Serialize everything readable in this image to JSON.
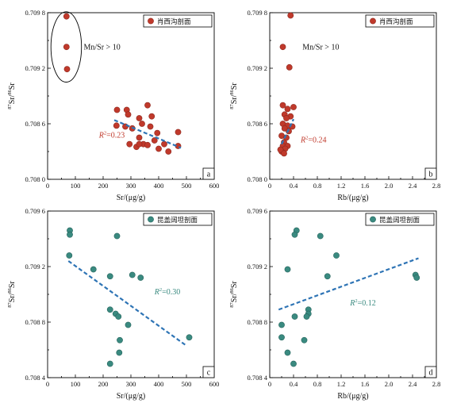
{
  "chart_data": [
    {
      "id": "a",
      "type": "scatter",
      "panel_label": "a",
      "xlabel": "Sr/(μg/g)",
      "ylabel_parts": {
        "sup1": "87",
        "t1": "Sr/",
        "sup2": "86",
        "t2": "Sr"
      },
      "xlim": [
        0,
        600
      ],
      "ylim": [
        0.708,
        0.7098
      ],
      "xticks": [
        "0",
        "100",
        "200",
        "300",
        "400",
        "500",
        "600"
      ],
      "yticks": [
        "0.708 0",
        "0.708 6",
        "0.709 2",
        "0.709 8"
      ],
      "legend": "肖西沟剖面",
      "color": "#c0392b",
      "edge": "#8e2a20",
      "trend_color": "#2e74b5",
      "trend": {
        "x": [
          240,
          480
        ],
        "y": [
          0.70864,
          0.70834
        ]
      },
      "r2_text": "=0.23",
      "r2_color": "#c0392b",
      "r2_pos": {
        "x": 185,
        "y": 0.70845
      },
      "annotation": "Mn/Sr > 10",
      "annotation_pos": {
        "x": 130,
        "y": 0.7094
      },
      "ellipse": {
        "cx": 67,
        "cy": 0.70943,
        "rx": 55,
        "ry": 0.00038
      },
      "points": [
        [
          68,
          0.70976
        ],
        [
          68,
          0.70943
        ],
        [
          70,
          0.70919
        ],
        [
          250,
          0.70875
        ],
        [
          285,
          0.70875
        ],
        [
          290,
          0.7087
        ],
        [
          330,
          0.70866
        ],
        [
          360,
          0.7088
        ],
        [
          375,
          0.70868
        ],
        [
          248,
          0.70858
        ],
        [
          280,
          0.70857
        ],
        [
          305,
          0.70855
        ],
        [
          340,
          0.7086
        ],
        [
          370,
          0.70857
        ],
        [
          395,
          0.7085
        ],
        [
          470,
          0.70851
        ],
        [
          295,
          0.70838
        ],
        [
          320,
          0.70835
        ],
        [
          330,
          0.70845
        ],
        [
          345,
          0.70838
        ],
        [
          360,
          0.70837
        ],
        [
          385,
          0.70842
        ],
        [
          400,
          0.70833
        ],
        [
          420,
          0.70838
        ],
        [
          435,
          0.7083
        ],
        [
          470,
          0.70836
        ],
        [
          330,
          0.70838
        ]
      ]
    },
    {
      "id": "b",
      "type": "scatter",
      "panel_label": "b",
      "xlabel": "Rb/(μg/g)",
      "ylabel_parts": {
        "sup1": "87",
        "t1": "Sr/",
        "sup2": "86",
        "t2": "Sr"
      },
      "xlim": [
        0,
        2.8
      ],
      "ylim": [
        0.708,
        0.7098
      ],
      "xticks": [
        "0",
        "0.4",
        "0.8",
        "1.2",
        "1.6",
        "2.0",
        "2.4",
        "2.8"
      ],
      "yticks": [
        "0.708 0",
        "0.708 6",
        "0.709 2",
        "0.709 8"
      ],
      "legend": "肖西沟剖面",
      "color": "#c0392b",
      "edge": "#8e2a20",
      "trend_color": "#2e74b5",
      "trend": {
        "x": [
          0.2,
          0.4
        ],
        "y": [
          0.70838,
          0.70865
        ]
      },
      "r2_text": "=0.24",
      "r2_color": "#c0392b",
      "r2_pos": {
        "x": 0.52,
        "y": 0.7084
      },
      "annotation": "Mn/Sr > 10",
      "annotation_pos": {
        "x": 0.55,
        "y": 0.7094
      },
      "ellipse": null,
      "points": [
        [
          0.35,
          0.70977
        ],
        [
          0.22,
          0.70943
        ],
        [
          0.33,
          0.70921
        ],
        [
          0.22,
          0.7088
        ],
        [
          0.3,
          0.70876
        ],
        [
          0.4,
          0.70878
        ],
        [
          0.25,
          0.7087
        ],
        [
          0.35,
          0.70868
        ],
        [
          0.28,
          0.70866
        ],
        [
          0.22,
          0.7086
        ],
        [
          0.3,
          0.70858
        ],
        [
          0.38,
          0.70857
        ],
        [
          0.25,
          0.70855
        ],
        [
          0.32,
          0.70852
        ],
        [
          0.2,
          0.70847
        ],
        [
          0.28,
          0.70845
        ],
        [
          0.24,
          0.7084
        ],
        [
          0.22,
          0.70836
        ],
        [
          0.3,
          0.70836
        ],
        [
          0.26,
          0.70833
        ],
        [
          0.2,
          0.7083
        ],
        [
          0.18,
          0.70832
        ],
        [
          0.24,
          0.70828
        ]
      ]
    },
    {
      "id": "c",
      "type": "scatter",
      "panel_label": "c",
      "xlabel": "Sr/(μg/g)",
      "ylabel_parts": {
        "sup1": "87",
        "t1": "Sr/",
        "sup2": "86",
        "t2": "Sr"
      },
      "xlim": [
        0,
        600
      ],
      "ylim": [
        0.7084,
        0.7096
      ],
      "xticks": [
        "0",
        "100",
        "200",
        "300",
        "400",
        "500",
        "600"
      ],
      "yticks": [
        "0.708 4",
        "0.708 8",
        "0.709 2",
        "0.709 6"
      ],
      "legend": "昆盖阔坦剖面",
      "color": "#3a8a80",
      "edge": "#27655d",
      "trend_color": "#2e74b5",
      "trend": {
        "x": [
          75,
          500
        ],
        "y": [
          0.70924,
          0.70863
        ]
      },
      "r2_text": "=0.30",
      "r2_color": "#3a8a80",
      "r2_pos": {
        "x": 385,
        "y": 0.709
      },
      "annotation": null,
      "ellipse": null,
      "points": [
        [
          80,
          0.70946
        ],
        [
          80,
          0.70943
        ],
        [
          78,
          0.70928
        ],
        [
          165,
          0.70918
        ],
        [
          250,
          0.70942
        ],
        [
          225,
          0.70913
        ],
        [
          305,
          0.70914
        ],
        [
          335,
          0.70912
        ],
        [
          225,
          0.70889
        ],
        [
          245,
          0.70886
        ],
        [
          255,
          0.70884
        ],
        [
          290,
          0.70878
        ],
        [
          260,
          0.70867
        ],
        [
          258,
          0.70858
        ],
        [
          510,
          0.70869
        ],
        [
          225,
          0.7085
        ]
      ]
    },
    {
      "id": "d",
      "type": "scatter",
      "panel_label": "d",
      "xlabel": "Rb/(μg/g)",
      "ylabel_parts": {
        "sup1": "87",
        "t1": "Sr/",
        "sup2": "86",
        "t2": "Sr"
      },
      "xlim": [
        0,
        2.8
      ],
      "ylim": [
        0.7084,
        0.7096
      ],
      "xticks": [
        "0",
        "0.4",
        "0.8",
        "1.2",
        "1.6",
        "2.0",
        "2.4",
        "2.8"
      ],
      "yticks": [
        "0.708 4",
        "0.708 8",
        "0.709 2",
        "0.709 6"
      ],
      "legend": "昆盖阔坦剖面",
      "color": "#3a8a80",
      "edge": "#27655d",
      "trend_color": "#2e74b5",
      "trend": {
        "x": [
          0.15,
          2.5
        ],
        "y": [
          0.70889,
          0.70926
        ]
      },
      "r2_text": "=0.12",
      "r2_color": "#3a8a80",
      "r2_pos": {
        "x": 1.35,
        "y": 0.70892
      },
      "annotation": null,
      "ellipse": null,
      "points": [
        [
          0.45,
          0.70946
        ],
        [
          0.42,
          0.70943
        ],
        [
          0.85,
          0.70942
        ],
        [
          1.12,
          0.70928
        ],
        [
          0.3,
          0.70918
        ],
        [
          0.97,
          0.70913
        ],
        [
          2.45,
          0.70914
        ],
        [
          2.47,
          0.70912
        ],
        [
          0.65,
          0.70889
        ],
        [
          0.42,
          0.70884
        ],
        [
          0.65,
          0.70886
        ],
        [
          0.62,
          0.70884
        ],
        [
          0.2,
          0.70878
        ],
        [
          0.2,
          0.70869
        ],
        [
          0.58,
          0.70867
        ],
        [
          0.3,
          0.70858
        ],
        [
          0.4,
          0.7085
        ]
      ]
    }
  ]
}
